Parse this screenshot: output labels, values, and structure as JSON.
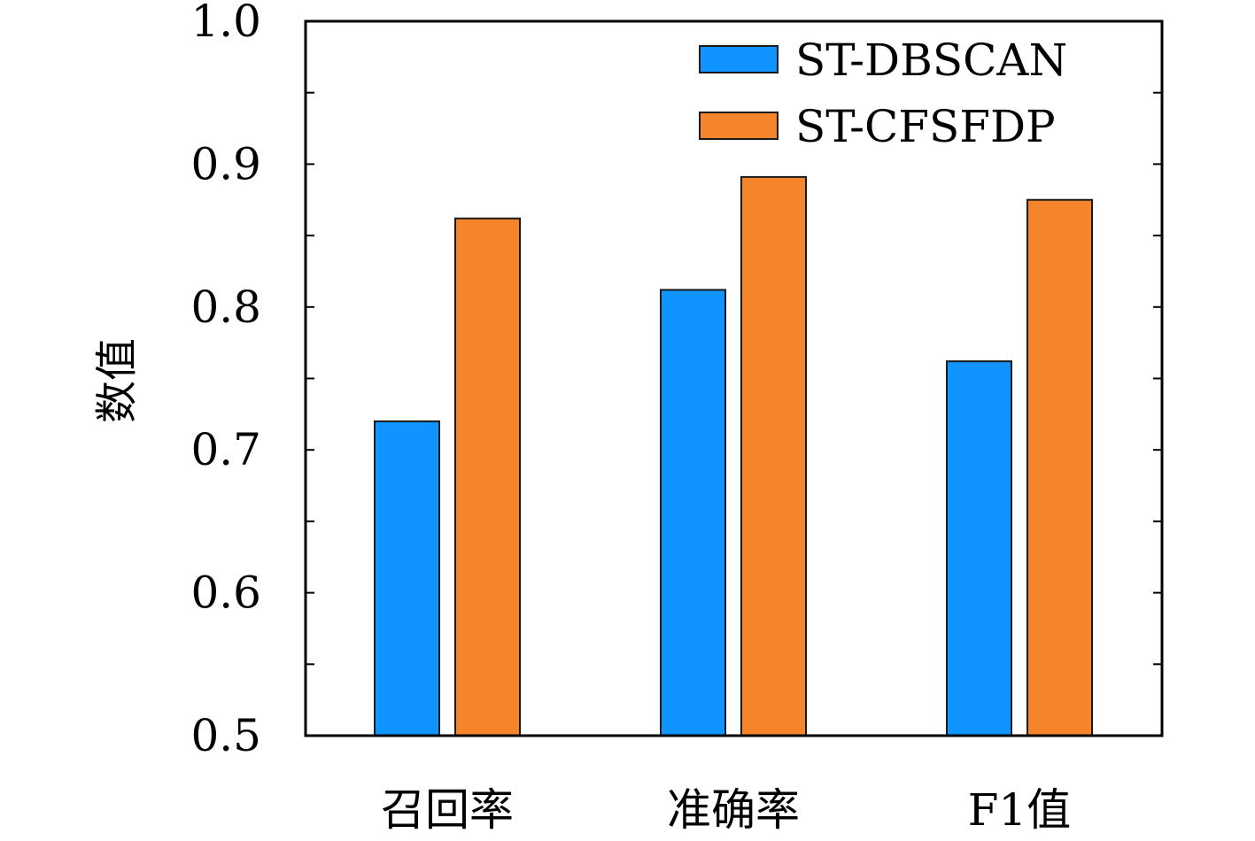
{
  "chart_data": {
    "type": "bar",
    "title": "",
    "xlabel": "",
    "ylabel": "数值",
    "categories": [
      "召回率",
      "准确率",
      "F1值"
    ],
    "series": [
      {
        "name": "ST-DBSCAN",
        "values": [
          0.72,
          0.812,
          0.762
        ],
        "color": "#1094ff"
      },
      {
        "name": "ST-CFSFDP",
        "values": [
          0.862,
          0.891,
          0.875
        ],
        "color": "#f5842a"
      }
    ],
    "ylim": [
      0.5,
      1.0
    ],
    "yticks": [
      "0.5",
      "0.6",
      "0.7",
      "0.8",
      "0.9",
      "1.0"
    ],
    "ytick_values": [
      0.5,
      0.6,
      0.7,
      0.8,
      0.9,
      1.0
    ],
    "minor_tick_step": 0.05,
    "grid": false,
    "legend_position": "top-right"
  }
}
